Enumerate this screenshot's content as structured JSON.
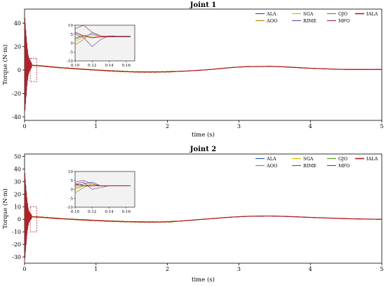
{
  "chart_data": [
    {
      "type": "line",
      "title": "Joint 1",
      "xlabel": "time (s)",
      "ylabel": "Torque (N·m)",
      "xlim": [
        0,
        5
      ],
      "ylim": [
        -43,
        52
      ],
      "xticks": [
        0,
        1,
        2,
        3,
        4,
        5
      ],
      "yticks": [
        -40,
        -20,
        0,
        20,
        40
      ],
      "legend": [
        "ALA",
        "AOO",
        "SGA",
        "RIME",
        "GJO",
        "MFO",
        "IALA"
      ],
      "legend_placement": "top-right",
      "series": [
        {
          "name": "ALA",
          "color": "#1f5fa8"
        },
        {
          "name": "AOO",
          "color": "#b8860b"
        },
        {
          "name": "SGA",
          "color": "#e0b800"
        },
        {
          "name": "RIME",
          "color": "#7b4fa0"
        },
        {
          "name": "GJO",
          "color": "#5a9a1a"
        },
        {
          "name": "MFO",
          "color": "#a0306a"
        },
        {
          "name": "IALA",
          "color": "#b02020"
        }
      ],
      "steady_curve": {
        "x": [
          0.1,
          0.5,
          1,
          1.5,
          2,
          2.5,
          3,
          3.3,
          3.5,
          4,
          4.5,
          5
        ],
        "y": [
          4,
          2,
          0,
          -1.5,
          -1.5,
          0,
          2.5,
          3,
          3,
          1.5,
          0.5,
          0.5
        ]
      },
      "transient_envelope": {
        "x": [
          0,
          0.01,
          0.02,
          0.03,
          0.04,
          0.05,
          0.06,
          0.08,
          0.1
        ],
        "amplitude": [
          45,
          38,
          30,
          22,
          15,
          10,
          7,
          4,
          2
        ]
      },
      "zoom_box": {
        "xlim": [
          0.08,
          0.17
        ],
        "ylim": [
          -10,
          10
        ]
      },
      "inset": {
        "xlim": [
          0.1,
          0.17
        ],
        "ylim": [
          -10,
          10
        ],
        "xticks": [
          0.1,
          0.12,
          0.14,
          0.16
        ],
        "yticks": [
          -10,
          -5,
          0,
          5,
          10
        ],
        "xtick_labels": [
          "0.10",
          "0.12",
          "0.14",
          "0.16"
        ],
        "series": [
          {
            "name": "ALA",
            "x": [
              0.1,
              0.11,
              0.12,
              0.13,
              0.14,
              0.15,
              0.16,
              0.165
            ],
            "y": [
              3,
              4,
              5,
              4,
              4,
              4,
              4,
              4
            ]
          },
          {
            "name": "AOO",
            "x": [
              0.1,
              0.11,
              0.12,
              0.13,
              0.14,
              0.15,
              0.16,
              0.165
            ],
            "y": [
              -1,
              2,
              6,
              4,
              4,
              3.5,
              3.5,
              3.5
            ]
          },
          {
            "name": "SGA",
            "x": [
              0.1,
              0.11,
              0.12,
              0.13,
              0.14,
              0.15,
              0.16,
              0.165
            ],
            "y": [
              1,
              3,
              4,
              3.5,
              3.5,
              3.5,
              3.5,
              3.5
            ]
          },
          {
            "name": "RIME",
            "x": [
              0.1,
              0.11,
              0.12,
              0.13,
              0.14,
              0.15,
              0.16,
              0.165
            ],
            "y": [
              5,
              3,
              -2,
              2,
              4,
              3.5,
              3.5,
              3.5
            ]
          },
          {
            "name": "GJO",
            "x": [
              0.1,
              0.11,
              0.12,
              0.13,
              0.14,
              0.15,
              0.16,
              0.165
            ],
            "y": [
              2,
              4,
              3,
              3.5,
              3.5,
              3.5,
              3.5,
              3.5
            ]
          },
          {
            "name": "MFO",
            "x": [
              0.1,
              0.11,
              0.12,
              0.13,
              0.14,
              0.15,
              0.16,
              0.165
            ],
            "y": [
              8,
              10,
              6,
              4,
              4,
              3.5,
              3.5,
              3.5
            ]
          },
          {
            "name": "IALA",
            "x": [
              0.1,
              0.11,
              0.12,
              0.13,
              0.14,
              0.15,
              0.16,
              0.165
            ],
            "y": [
              6,
              4,
              3,
              3.5,
              3.5,
              3.5,
              3.5,
              3.5
            ]
          }
        ]
      }
    },
    {
      "type": "line",
      "title": "Joint 2",
      "xlabel": "time (s)",
      "ylabel": "Torque (N·m)",
      "xlim": [
        0,
        5
      ],
      "ylim": [
        -35,
        52
      ],
      "xticks": [
        0,
        1,
        2,
        3,
        4,
        5
      ],
      "yticks": [
        -30,
        -20,
        -10,
        0,
        10,
        20,
        30,
        40,
        50
      ],
      "legend": [
        "ALA",
        "AOO",
        "SGA",
        "RIME",
        "GJO",
        "MFO",
        "IALA"
      ],
      "legend_placement": "top-right",
      "series": [
        {
          "name": "ALA",
          "color": "#1f5fa8"
        },
        {
          "name": "AOO",
          "color": "#b8860b"
        },
        {
          "name": "SGA",
          "color": "#e0b800"
        },
        {
          "name": "RIME",
          "color": "#7b4fa0"
        },
        {
          "name": "GJO",
          "color": "#5a9a1a"
        },
        {
          "name": "MFO",
          "color": "#a0306a"
        },
        {
          "name": "IALA",
          "color": "#b02020"
        }
      ],
      "steady_curve": {
        "x": [
          0.1,
          0.5,
          1,
          1.5,
          2,
          2.5,
          3,
          3.3,
          3.5,
          4,
          4.5,
          5
        ],
        "y": [
          2,
          0.5,
          -1,
          -2,
          -2,
          0,
          2,
          2.5,
          2.5,
          1.5,
          0.5,
          0
        ]
      },
      "transient_envelope": {
        "x": [
          0,
          0.01,
          0.02,
          0.03,
          0.04,
          0.05,
          0.06,
          0.08,
          0.1
        ],
        "amplitude": [
          40,
          32,
          25,
          18,
          12,
          8,
          5,
          3,
          1.5
        ]
      },
      "zoom_box": {
        "xlim": [
          0.08,
          0.17
        ],
        "ylim": [
          -10,
          10
        ]
      },
      "inset": {
        "xlim": [
          0.1,
          0.17
        ],
        "ylim": [
          -10,
          10
        ],
        "xticks": [
          0.1,
          0.12,
          0.14,
          0.16
        ],
        "yticks": [
          -10,
          -5,
          0,
          5,
          10
        ],
        "xtick_labels": [
          "0.10",
          "0.12",
          "0.14",
          "0.16"
        ],
        "series": [
          {
            "name": "ALA",
            "x": [
              0.1,
              0.11,
              0.12,
              0.13,
              0.14,
              0.15,
              0.16,
              0.165
            ],
            "y": [
              2,
              3,
              4,
              2,
              2,
              2,
              2,
              2
            ]
          },
          {
            "name": "AOO",
            "x": [
              0.1,
              0.11,
              0.12,
              0.13,
              0.14,
              0.15,
              0.16,
              0.165
            ],
            "y": [
              -2,
              1,
              3,
              2,
              2,
              2,
              2,
              2
            ]
          },
          {
            "name": "SGA",
            "x": [
              0.1,
              0.11,
              0.12,
              0.13,
              0.14,
              0.15,
              0.16,
              0.165
            ],
            "y": [
              0,
              2,
              3,
              2,
              2,
              2,
              2,
              2
            ]
          },
          {
            "name": "RIME",
            "x": [
              0.1,
              0.11,
              0.12,
              0.13,
              0.14,
              0.15,
              0.16,
              0.165
            ],
            "y": [
              3,
              4,
              0,
              1,
              2,
              2,
              2,
              2
            ]
          },
          {
            "name": "GJO",
            "x": [
              0.1,
              0.11,
              0.12,
              0.13,
              0.14,
              0.15,
              0.16,
              0.165
            ],
            "y": [
              1,
              2,
              2,
              2,
              2,
              2,
              2,
              2
            ]
          },
          {
            "name": "MFO",
            "x": [
              0.1,
              0.11,
              0.12,
              0.13,
              0.14,
              0.15,
              0.16,
              0.165
            ],
            "y": [
              4,
              5,
              3,
              2,
              2,
              2,
              2,
              2
            ]
          },
          {
            "name": "IALA",
            "x": [
              0.1,
              0.11,
              0.12,
              0.13,
              0.14,
              0.15,
              0.16,
              0.165
            ],
            "y": [
              3,
              2,
              2,
              2,
              2,
              2,
              2,
              2
            ]
          }
        ]
      }
    }
  ]
}
